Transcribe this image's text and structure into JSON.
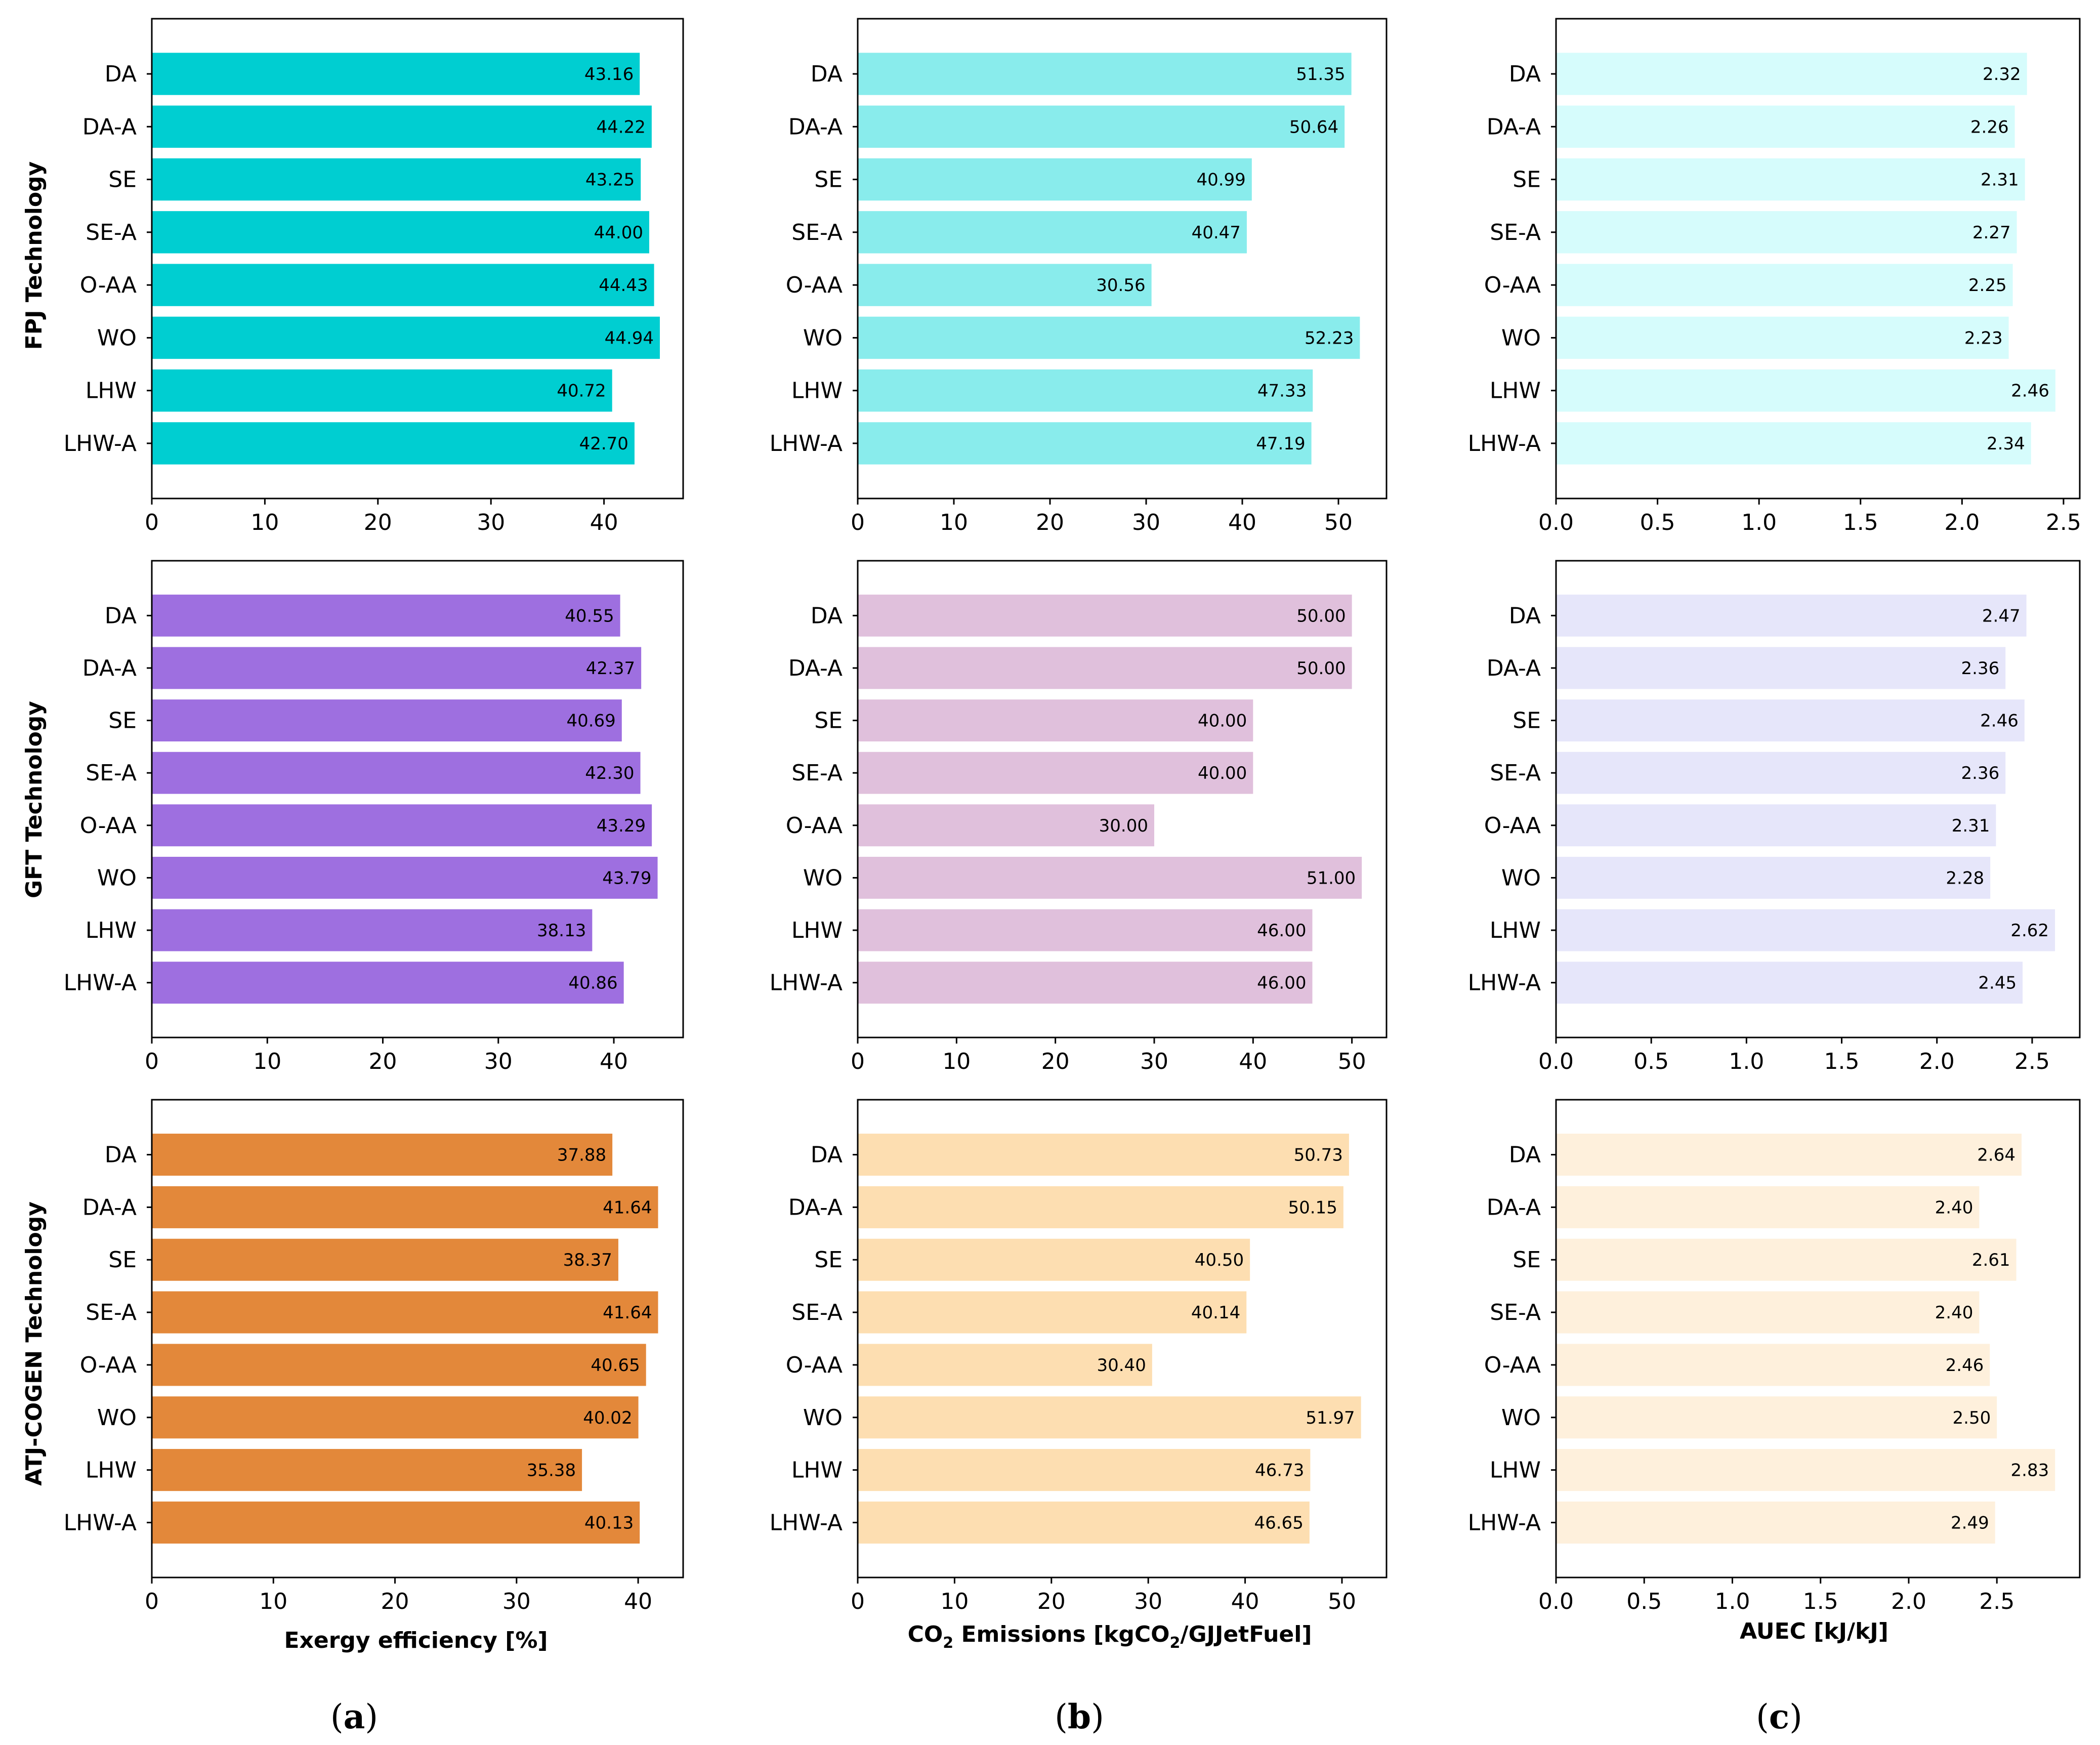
{
  "categories": [
    "DA",
    "DA-A",
    "SE",
    "SE-A",
    "O-AA",
    "WO",
    "LHW",
    "LHW-A"
  ],
  "row_titles": [
    "FPJ Technology",
    "GFT Technology",
    "ATJ-COGEN Technology"
  ],
  "column_xlabels": {
    "a": "Exergy efficiency [%]",
    "b_prefix": "CO",
    "b_sub": "2",
    "b_mid": " Emissions [kgCO",
    "b_sub2": "2",
    "b_suffix": "/GJJetFuel]",
    "c": "AUEC [kJ/kJ]"
  },
  "panel_letters": [
    "a",
    "b",
    "c"
  ],
  "chart_data": [
    {
      "type": "bar",
      "orientation": "horizontal",
      "row_title": "FPJ Technology",
      "column": "a",
      "categories": [
        "DA",
        "DA-A",
        "SE",
        "SE-A",
        "O-AA",
        "WO",
        "LHW",
        "LHW-A"
      ],
      "values": [
        43.16,
        44.22,
        43.25,
        44.0,
        44.43,
        44.94,
        40.72,
        42.7
      ],
      "value_labels": [
        "43.16",
        "44.22",
        "43.25",
        "44.00",
        "44.43",
        "44.94",
        "40.72",
        "42.70"
      ],
      "xlim": [
        0,
        47
      ],
      "xticks": [
        "0",
        "10",
        "20",
        "30",
        "40"
      ],
      "color": "#00CED1",
      "xlabel": ""
    },
    {
      "type": "bar",
      "orientation": "horizontal",
      "row_title": "FPJ Technology",
      "column": "b",
      "categories": [
        "DA",
        "DA-A",
        "SE",
        "SE-A",
        "O-AA",
        "WO",
        "LHW",
        "LHW-A"
      ],
      "values": [
        51.35,
        50.64,
        40.99,
        40.47,
        30.56,
        52.23,
        47.33,
        47.19
      ],
      "value_labels": [
        "51.35",
        "50.64",
        "40.99",
        "40.47",
        "30.56",
        "52.23",
        "47.33",
        "47.19"
      ],
      "xlim": [
        0,
        55
      ],
      "xticks": [
        "0",
        "10",
        "20",
        "30",
        "40",
        "50"
      ],
      "color": "#89ECEC",
      "xlabel": ""
    },
    {
      "type": "bar",
      "orientation": "horizontal",
      "row_title": "FPJ Technology",
      "column": "c",
      "categories": [
        "DA",
        "DA-A",
        "SE",
        "SE-A",
        "O-AA",
        "WO",
        "LHW",
        "LHW-A"
      ],
      "values": [
        2.32,
        2.26,
        2.31,
        2.27,
        2.25,
        2.23,
        2.46,
        2.34
      ],
      "value_labels": [
        "2.32",
        "2.26",
        "2.31",
        "2.27",
        "2.25",
        "2.23",
        "2.46",
        "2.34"
      ],
      "xlim": [
        0,
        2.58
      ],
      "xticks": [
        "0.0",
        "0.5",
        "1.0",
        "1.5",
        "2.0",
        "2.5"
      ],
      "color": "#D6FCFC",
      "xlabel": ""
    },
    {
      "type": "bar",
      "orientation": "horizontal",
      "row_title": "GFT Technology",
      "column": "a",
      "categories": [
        "DA",
        "DA-A",
        "SE",
        "SE-A",
        "O-AA",
        "WO",
        "LHW",
        "LHW-A"
      ],
      "values": [
        40.55,
        42.37,
        40.69,
        42.3,
        43.29,
        43.79,
        38.13,
        40.86
      ],
      "value_labels": [
        "40.55",
        "42.37",
        "40.69",
        "42.30",
        "43.29",
        "43.79",
        "38.13",
        "40.86"
      ],
      "xlim": [
        0,
        46
      ],
      "xticks": [
        "0",
        "10",
        "20",
        "30",
        "40"
      ],
      "color": "#9E6FE0",
      "xlabel": ""
    },
    {
      "type": "bar",
      "orientation": "horizontal",
      "row_title": "GFT Technology",
      "column": "b",
      "categories": [
        "DA",
        "DA-A",
        "SE",
        "SE-A",
        "O-AA",
        "WO",
        "LHW",
        "LHW-A"
      ],
      "values": [
        50.0,
        50.0,
        40.0,
        40.0,
        30.0,
        51.0,
        46.0,
        46.0
      ],
      "value_labels": [
        "50.00",
        "50.00",
        "40.00",
        "40.00",
        "30.00",
        "51.00",
        "46.00",
        "46.00"
      ],
      "xlim": [
        0,
        53.5
      ],
      "xticks": [
        "0",
        "10",
        "20",
        "30",
        "40",
        "50"
      ],
      "color": "#E0C0DC",
      "xlabel": ""
    },
    {
      "type": "bar",
      "orientation": "horizontal",
      "row_title": "GFT Technology",
      "column": "c",
      "categories": [
        "DA",
        "DA-A",
        "SE",
        "SE-A",
        "O-AA",
        "WO",
        "LHW",
        "LHW-A"
      ],
      "values": [
        2.47,
        2.36,
        2.46,
        2.36,
        2.31,
        2.28,
        2.62,
        2.45
      ],
      "value_labels": [
        "2.47",
        "2.36",
        "2.46",
        "2.36",
        "2.31",
        "2.28",
        "2.62",
        "2.45"
      ],
      "xlim": [
        0,
        2.75
      ],
      "xticks": [
        "0.0",
        "0.5",
        "1.0",
        "1.5",
        "2.0",
        "2.5"
      ],
      "color": "#E6E6FA",
      "xlabel": ""
    },
    {
      "type": "bar",
      "orientation": "horizontal",
      "row_title": "ATJ-COGEN Technology",
      "column": "a",
      "categories": [
        "DA",
        "DA-A",
        "SE",
        "SE-A",
        "O-AA",
        "WO",
        "LHW",
        "LHW-A"
      ],
      "values": [
        37.88,
        41.64,
        38.37,
        41.64,
        40.65,
        40.02,
        35.38,
        40.13
      ],
      "value_labels": [
        "37.88",
        "41.64",
        "38.37",
        "41.64",
        "40.65",
        "40.02",
        "35.38",
        "40.13"
      ],
      "xlim": [
        0,
        43.7
      ],
      "xticks": [
        "0",
        "10",
        "20",
        "30",
        "40"
      ],
      "color": "#E3883A",
      "xlabel": "Exergy efficiency [%]"
    },
    {
      "type": "bar",
      "orientation": "horizontal",
      "row_title": "ATJ-COGEN Technology",
      "column": "b",
      "categories": [
        "DA",
        "DA-A",
        "SE",
        "SE-A",
        "O-AA",
        "WO",
        "LHW",
        "LHW-A"
      ],
      "values": [
        50.73,
        50.15,
        40.5,
        40.14,
        30.4,
        51.97,
        46.73,
        46.65
      ],
      "value_labels": [
        "50.73",
        "50.15",
        "40.50",
        "40.14",
        "30.40",
        "51.97",
        "46.73",
        "46.65"
      ],
      "xlim": [
        0,
        54.6
      ],
      "xticks": [
        "0",
        "10",
        "20",
        "30",
        "40",
        "50"
      ],
      "color": "#FDDEB1",
      "xlabel": "CO2 Emissions [kgCO2/GJJetFuel]"
    },
    {
      "type": "bar",
      "orientation": "horizontal",
      "row_title": "ATJ-COGEN Technology",
      "column": "c",
      "categories": [
        "DA",
        "DA-A",
        "SE",
        "SE-A",
        "O-AA",
        "WO",
        "LHW",
        "LHW-A"
      ],
      "values": [
        2.64,
        2.4,
        2.61,
        2.4,
        2.46,
        2.5,
        2.83,
        2.49
      ],
      "value_labels": [
        "2.64",
        "2.40",
        "2.61",
        "2.40",
        "2.46",
        "2.50",
        "2.83",
        "2.49"
      ],
      "xlim": [
        0,
        2.97
      ],
      "xticks": [
        "0.0",
        "0.5",
        "1.0",
        "1.5",
        "2.0",
        "2.5"
      ],
      "color": "#FEF0DC",
      "xlabel": "AUEC [kJ/kJ]"
    }
  ]
}
